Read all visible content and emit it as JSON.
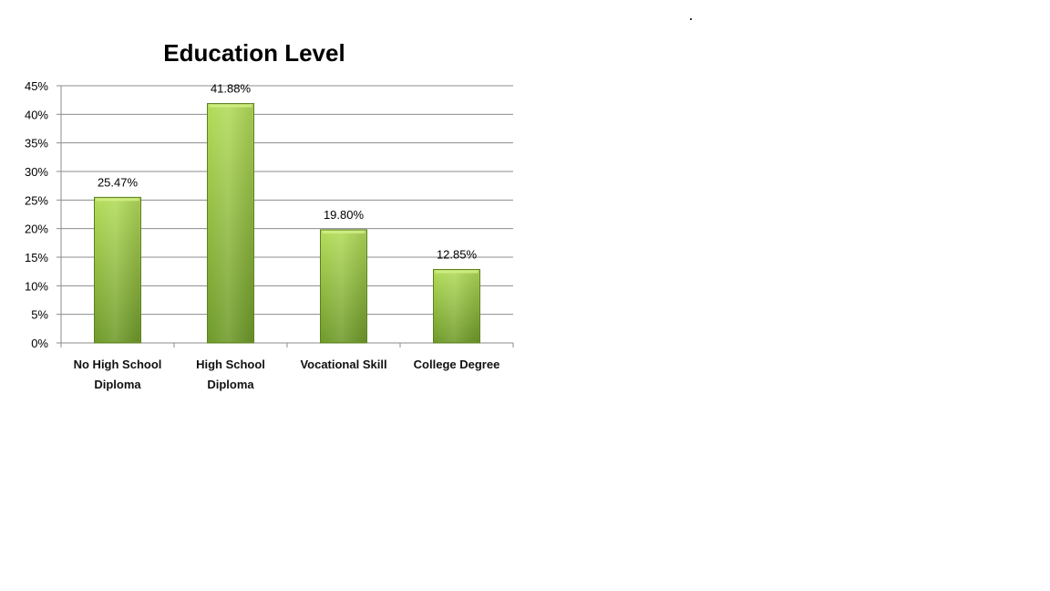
{
  "colors": {
    "bar_light": "#b3dc5a",
    "bar_dark": "#6f9a2a",
    "bar_edge": "#5c7f22",
    "grid": "#8c8c8c",
    "axis": "#8c8c8c"
  },
  "chart_data": {
    "type": "bar",
    "title": "Education Level",
    "xlabel": "",
    "ylabel": "",
    "categories": [
      [
        "No High School",
        "Diploma"
      ],
      [
        "High School",
        "Diploma"
      ],
      [
        "Vocational Skill"
      ],
      [
        "College Degree"
      ]
    ],
    "values": [
      25.47,
      41.88,
      19.8,
      12.85
    ],
    "data_labels": [
      "25.47%",
      "41.88%",
      "19.80%",
      "12.85%"
    ],
    "ylim": [
      0,
      45
    ],
    "yticks": [
      0,
      5,
      10,
      15,
      20,
      25,
      30,
      35,
      40,
      45
    ],
    "ytick_labels": [
      "0%",
      "5%",
      "10%",
      "15%",
      "20%",
      "25%",
      "30%",
      "35%",
      "40%",
      "45%"
    ],
    "grid": true,
    "legend": "none"
  }
}
